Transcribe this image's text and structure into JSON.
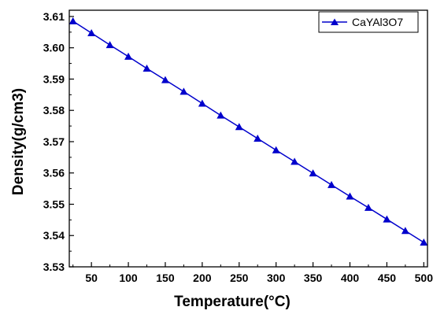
{
  "chart_data": {
    "type": "line",
    "title": "",
    "xlabel": "Temperature(°C)",
    "ylabel": "Density(g/cm3)",
    "xlim": [
      20,
      505
    ],
    "ylim": [
      3.53,
      3.612
    ],
    "xticks": [
      50,
      100,
      150,
      200,
      250,
      300,
      350,
      400,
      450,
      500
    ],
    "yticks": [
      3.53,
      3.54,
      3.55,
      3.56,
      3.57,
      3.58,
      3.59,
      3.6,
      3.61
    ],
    "ytick_labels": [
      "3.53",
      "3.54",
      "3.55",
      "3.56",
      "3.57",
      "3.58",
      "3.59",
      "3.60",
      "3.61"
    ],
    "grid": false,
    "legend": {
      "placement": "top-right"
    },
    "series": [
      {
        "name": "CaYAl3O7",
        "color": "#0000cc",
        "marker": "triangle-up",
        "x": [
          25,
          50,
          75,
          100,
          125,
          150,
          175,
          200,
          225,
          250,
          275,
          300,
          325,
          350,
          375,
          400,
          425,
          450,
          475,
          500
        ],
        "y": [
          3.6085,
          3.6047,
          3.6009,
          3.5972,
          3.5934,
          3.5897,
          3.586,
          3.5822,
          3.5784,
          3.5747,
          3.571,
          3.5673,
          3.5636,
          3.5599,
          3.5562,
          3.5525,
          3.5489,
          3.5452,
          3.5415,
          3.5378
        ]
      }
    ]
  }
}
